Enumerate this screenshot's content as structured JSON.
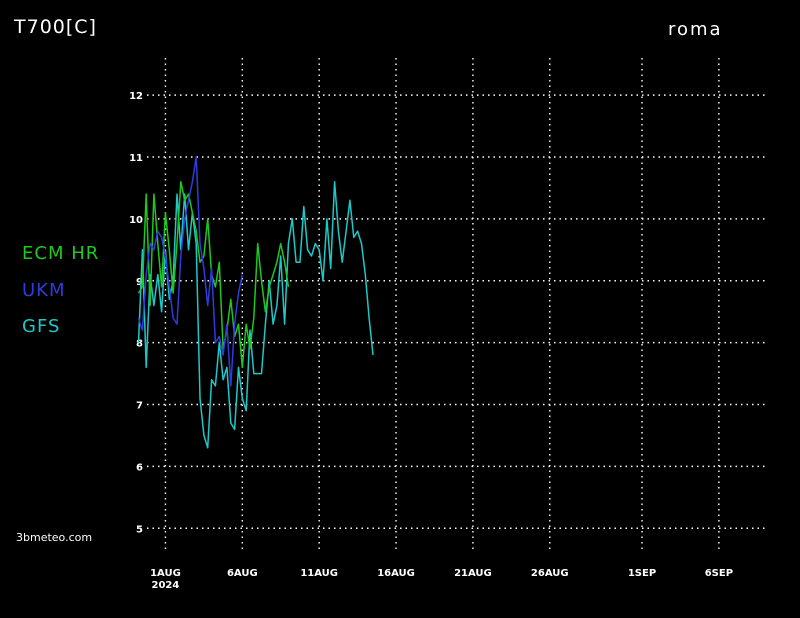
{
  "title": "T700[C]",
  "location": "roma",
  "credit": "3bmeteo.com",
  "colors": {
    "background": "#000000",
    "grid": "#ffffff",
    "text": "#ffffff"
  },
  "chart_data": {
    "type": "line",
    "ylabel": "T700[C]",
    "ylim": [
      4.6,
      12.6
    ],
    "yticks": [
      5,
      6,
      7,
      8,
      9,
      10,
      11,
      12
    ],
    "xlim": [
      -1.2,
      39.0
    ],
    "xticks": [
      {
        "day": 0,
        "label": "1AUG",
        "sub": "2024"
      },
      {
        "day": 5,
        "label": "6AUG",
        "sub": ""
      },
      {
        "day": 10,
        "label": "11AUG",
        "sub": ""
      },
      {
        "day": 15,
        "label": "16AUG",
        "sub": ""
      },
      {
        "day": 20,
        "label": "21AUG",
        "sub": ""
      },
      {
        "day": 25,
        "label": "26AUG",
        "sub": ""
      },
      {
        "day": 31,
        "label": "1SEP",
        "sub": ""
      },
      {
        "day": 36,
        "label": "6SEP",
        "sub": ""
      }
    ],
    "grid": true,
    "legend_position": "left",
    "series": [
      {
        "name": "ECM HR",
        "color": "#1ec81e",
        "x": [
          -1.75,
          -1.5,
          -1.25,
          -1.0,
          -0.75,
          -0.5,
          -0.25,
          0.0,
          0.25,
          0.5,
          0.75,
          1.0,
          1.25,
          1.5,
          1.75,
          2.0,
          2.25,
          2.5,
          2.75,
          3.0,
          3.25,
          3.5,
          3.75,
          4.0,
          4.25,
          4.5,
          4.75,
          5.0,
          5.25,
          5.5,
          5.75,
          6.0,
          6.25,
          6.5,
          6.75,
          7.0,
          7.25,
          7.5,
          7.75,
          8.0
        ],
        "y": [
          8.8,
          8.9,
          10.4,
          8.6,
          10.4,
          9.6,
          8.9,
          10.1,
          9.5,
          8.8,
          9.6,
          10.6,
          10.3,
          10.4,
          10.1,
          9.8,
          9.3,
          9.4,
          10.0,
          9.1,
          8.9,
          9.3,
          7.9,
          8.2,
          8.7,
          8.1,
          8.3,
          7.6,
          8.3,
          7.9,
          8.4,
          9.6,
          9.0,
          8.5,
          8.9,
          9.1,
          9.3,
          9.6,
          9.3,
          8.9
        ]
      },
      {
        "name": "UKM",
        "color": "#2e3cdc",
        "x": [
          -1.75,
          -1.5,
          -1.25,
          -1.0,
          -0.75,
          -0.5,
          -0.25,
          0.0,
          0.25,
          0.5,
          0.75,
          1.0,
          1.25,
          1.5,
          1.75,
          2.0,
          2.25,
          2.5,
          2.75,
          3.0,
          3.25,
          3.5,
          3.75,
          4.0,
          4.25,
          4.5,
          4.75,
          5.0
        ],
        "y": [
          8.4,
          8.2,
          9.1,
          9.6,
          9.5,
          9.8,
          9.7,
          9.4,
          8.9,
          8.4,
          8.3,
          9.4,
          10.0,
          10.3,
          10.6,
          11.0,
          9.6,
          9.2,
          8.6,
          9.2,
          8.0,
          8.1,
          7.8,
          8.3,
          7.3,
          8.3,
          8.8,
          9.1
        ]
      },
      {
        "name": "GFS",
        "color": "#1ec8c8",
        "x": [
          -1.75,
          -1.5,
          -1.25,
          -1.0,
          -0.75,
          -0.5,
          -0.25,
          0.0,
          0.25,
          0.5,
          0.75,
          1.0,
          1.25,
          1.5,
          1.75,
          2.0,
          2.25,
          2.5,
          2.75,
          3.0,
          3.25,
          3.5,
          3.75,
          4.0,
          4.25,
          4.5,
          4.75,
          5.0,
          5.25,
          5.5,
          5.75,
          6.0,
          6.25,
          6.5,
          6.75,
          7.0,
          7.25,
          7.5,
          7.75,
          8.0,
          8.25,
          8.5,
          8.75,
          9.0,
          9.25,
          9.5,
          9.75,
          10.0,
          10.25,
          10.5,
          10.75,
          11.0,
          11.25,
          11.5,
          11.75,
          12.0,
          12.25,
          12.5,
          12.75,
          13.0,
          13.25,
          13.5,
          13.75,
          14.0,
          14.25,
          14.5
        ],
        "y": [
          8.0,
          9.5,
          7.6,
          9.1,
          8.6,
          9.1,
          8.5,
          9.5,
          8.7,
          9.0,
          10.4,
          9.5,
          10.4,
          9.5,
          10.1,
          9.6,
          7.1,
          6.5,
          6.3,
          7.4,
          7.3,
          8.0,
          7.4,
          7.6,
          6.7,
          6.6,
          7.6,
          7.1,
          6.9,
          8.2,
          7.5,
          7.5,
          7.5,
          8.3,
          9.0,
          8.3,
          8.6,
          9.4,
          8.3,
          9.6,
          10.0,
          9.3,
          9.3,
          10.2,
          9.5,
          9.4,
          9.6,
          9.5,
          9.0,
          10.0,
          9.2,
          10.6,
          9.8,
          9.3,
          9.8,
          10.3,
          9.7,
          9.8,
          9.6,
          9.1,
          8.4,
          7.8,
          null,
          null,
          null,
          null
        ]
      }
    ]
  }
}
